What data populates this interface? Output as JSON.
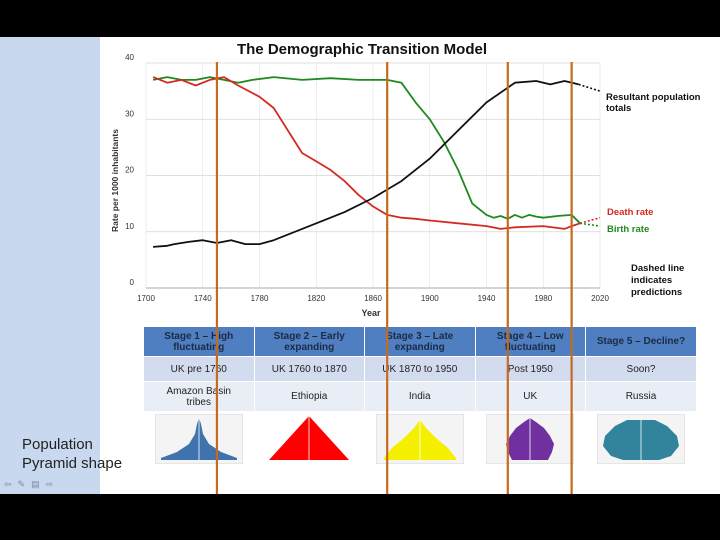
{
  "chart_data": {
    "type": "line",
    "title": "The Demographic Transition Model",
    "xlabel": "Year",
    "ylabel": "Rate per 1000 inhabitants",
    "xlim": [
      1700,
      2020
    ],
    "ylim": [
      0,
      40
    ],
    "x_ticks": [
      1700,
      1740,
      1780,
      1820,
      1860,
      1900,
      1940,
      1980,
      2020
    ],
    "x_tick_labels": [
      "1700",
      "1740",
      "1780",
      "1820",
      "1860",
      "1900",
      "1940",
      "1980",
      "2020"
    ],
    "y_ticks": [
      0,
      10,
      20,
      30,
      40
    ],
    "y_tick_labels": [
      "0",
      "10",
      "20",
      "30",
      "40"
    ],
    "series": [
      {
        "name": "Birth rate",
        "color": "#1e8a1e",
        "x": [
          1705,
          1715,
          1725,
          1735,
          1745,
          1755,
          1765,
          1775,
          1790,
          1810,
          1830,
          1850,
          1860,
          1870,
          1880,
          1890,
          1900,
          1910,
          1920,
          1930,
          1940,
          1945,
          1950,
          1955,
          1960,
          1965,
          1970,
          1975,
          1980,
          1990,
          2000,
          2006
        ],
        "y": [
          37,
          37.5,
          37,
          37,
          37.5,
          37,
          36.5,
          37,
          37.5,
          37,
          37.3,
          37,
          37,
          37,
          36.5,
          33,
          30,
          26,
          21,
          15,
          13,
          12.5,
          12.8,
          12.3,
          13,
          12.5,
          13,
          12.7,
          12.5,
          12.8,
          13,
          11.5
        ]
      },
      {
        "name": "Death rate",
        "color": "#d42a22",
        "x": [
          1705,
          1715,
          1725,
          1735,
          1745,
          1755,
          1765,
          1780,
          1790,
          1800,
          1810,
          1820,
          1830,
          1840,
          1850,
          1860,
          1870,
          1880,
          1890,
          1900,
          1920,
          1940,
          1950,
          1960,
          1980,
          1995,
          2000,
          2006
        ],
        "y": [
          37.5,
          36.5,
          37,
          36,
          37,
          37.5,
          36,
          34,
          32,
          28,
          24,
          22.5,
          21,
          19,
          16.5,
          14.5,
          13,
          12.5,
          12.3,
          12,
          11.5,
          11,
          10.5,
          10.8,
          11,
          10.5,
          11,
          11.5
        ]
      },
      {
        "name": "Resultant population totals",
        "color": "#111111",
        "x": [
          1705,
          1715,
          1720,
          1730,
          1740,
          1750,
          1760,
          1770,
          1780,
          1790,
          1800,
          1820,
          1840,
          1860,
          1880,
          1900,
          1920,
          1940,
          1960,
          1975,
          1985,
          1995,
          2005
        ],
        "y": [
          7.3,
          7.5,
          7.8,
          8.2,
          8.5,
          8,
          8.5,
          7.8,
          7.8,
          8.5,
          9.5,
          11.5,
          13.5,
          16,
          19,
          23,
          28,
          33,
          36.5,
          36.8,
          36.2,
          36.8,
          36.2
        ]
      }
    ],
    "predictions": [
      {
        "name": "Death rate",
        "color": "#d42a22",
        "x": [
          2006,
          2020
        ],
        "y": [
          11.5,
          12.5
        ]
      },
      {
        "name": "Birth rate",
        "color": "#1e8a1e",
        "x": [
          2006,
          2020
        ],
        "y": [
          11.5,
          11
        ]
      },
      {
        "name": "Resultant population totals",
        "color": "#111111",
        "x": [
          2005,
          2020
        ],
        "y": [
          36.2,
          35
        ]
      }
    ],
    "annotations": {
      "population": [
        "Resultant population",
        "totals"
      ],
      "death": "Death rate",
      "birth": "Birth rate",
      "dashed": [
        "Dashed line",
        "indicates",
        "predictions"
      ]
    }
  },
  "table": {
    "headers": [
      [
        "Stage 1 – High",
        "fluctuating"
      ],
      [
        "Stage 2 – Early",
        "expanding"
      ],
      [
        "Stage 3 – Late",
        "expanding"
      ],
      [
        "Stage 4 – Low",
        "fluctuating"
      ],
      [
        "Stage 5 – Decline?",
        ""
      ]
    ],
    "periods": [
      "UK pre 1760",
      "UK 1760 to 1870",
      "UK  1870 to 1950",
      "Post 1950",
      "Soon?"
    ],
    "examples": [
      [
        "Amazon Basin",
        "tribes"
      ],
      [
        "Ethiopia",
        ""
      ],
      [
        "India",
        ""
      ],
      [
        "UK",
        ""
      ],
      [
        "Russia",
        ""
      ]
    ],
    "pyramid_colors": [
      "#3f73ad",
      "#ff0000",
      "#f4f000",
      "#7030a0",
      "#31849b"
    ]
  },
  "pyramid_label": [
    "Population",
    "Pyramid shape"
  ],
  "stage_boundary_color": "#c56a1e",
  "stage_boundary_years": [
    1750,
    1870,
    1955,
    2000
  ]
}
